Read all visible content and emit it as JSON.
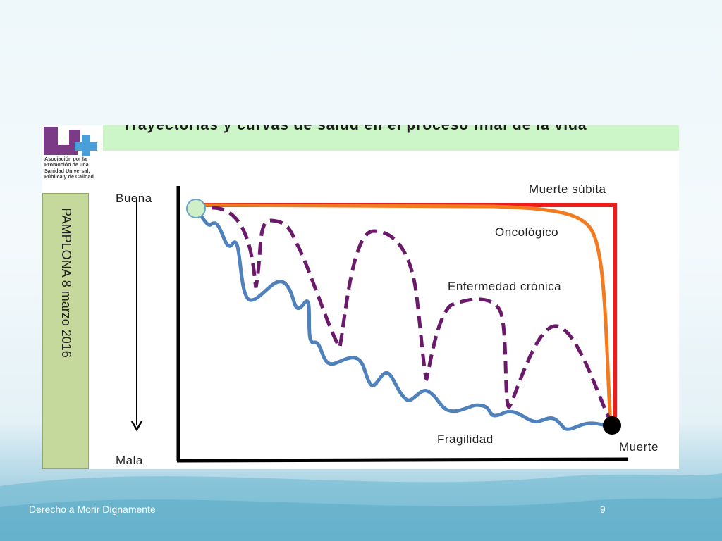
{
  "slide": {
    "title": "Trayectorias y curvas de salud en el proceso final de la vida",
    "footer_left": "Derecho a Morir Dignamente",
    "page_number": "9"
  },
  "logo": {
    "lines": [
      "Asociación por la",
      "Promoción de una",
      "Sanidad Universal,",
      "Pública y de Calidad"
    ],
    "colors": {
      "purple": "#7b3b87",
      "blue": "#4a9fd8"
    }
  },
  "side_band": {
    "text": "PAMPLONA 8 marzo 2016"
  },
  "diagram": {
    "axis_labels": {
      "top": "Buena",
      "bottom": "Mala"
    },
    "curves": [
      {
        "label": "Muerte súbita",
        "color": "#ee1c1c",
        "style": "solid"
      },
      {
        "label": "Oncológico",
        "color": "#f47a1f",
        "style": "solid"
      },
      {
        "label": "Enfermedad crónica",
        "color": "#6b1a6b",
        "style": "dashed"
      },
      {
        "label": "Fragilidad",
        "color": "#4f81bd",
        "style": "solid"
      }
    ],
    "endpoint_label": "Muerte",
    "start_marker_color": "#cfefc9",
    "end_marker_color": "#000000"
  }
}
